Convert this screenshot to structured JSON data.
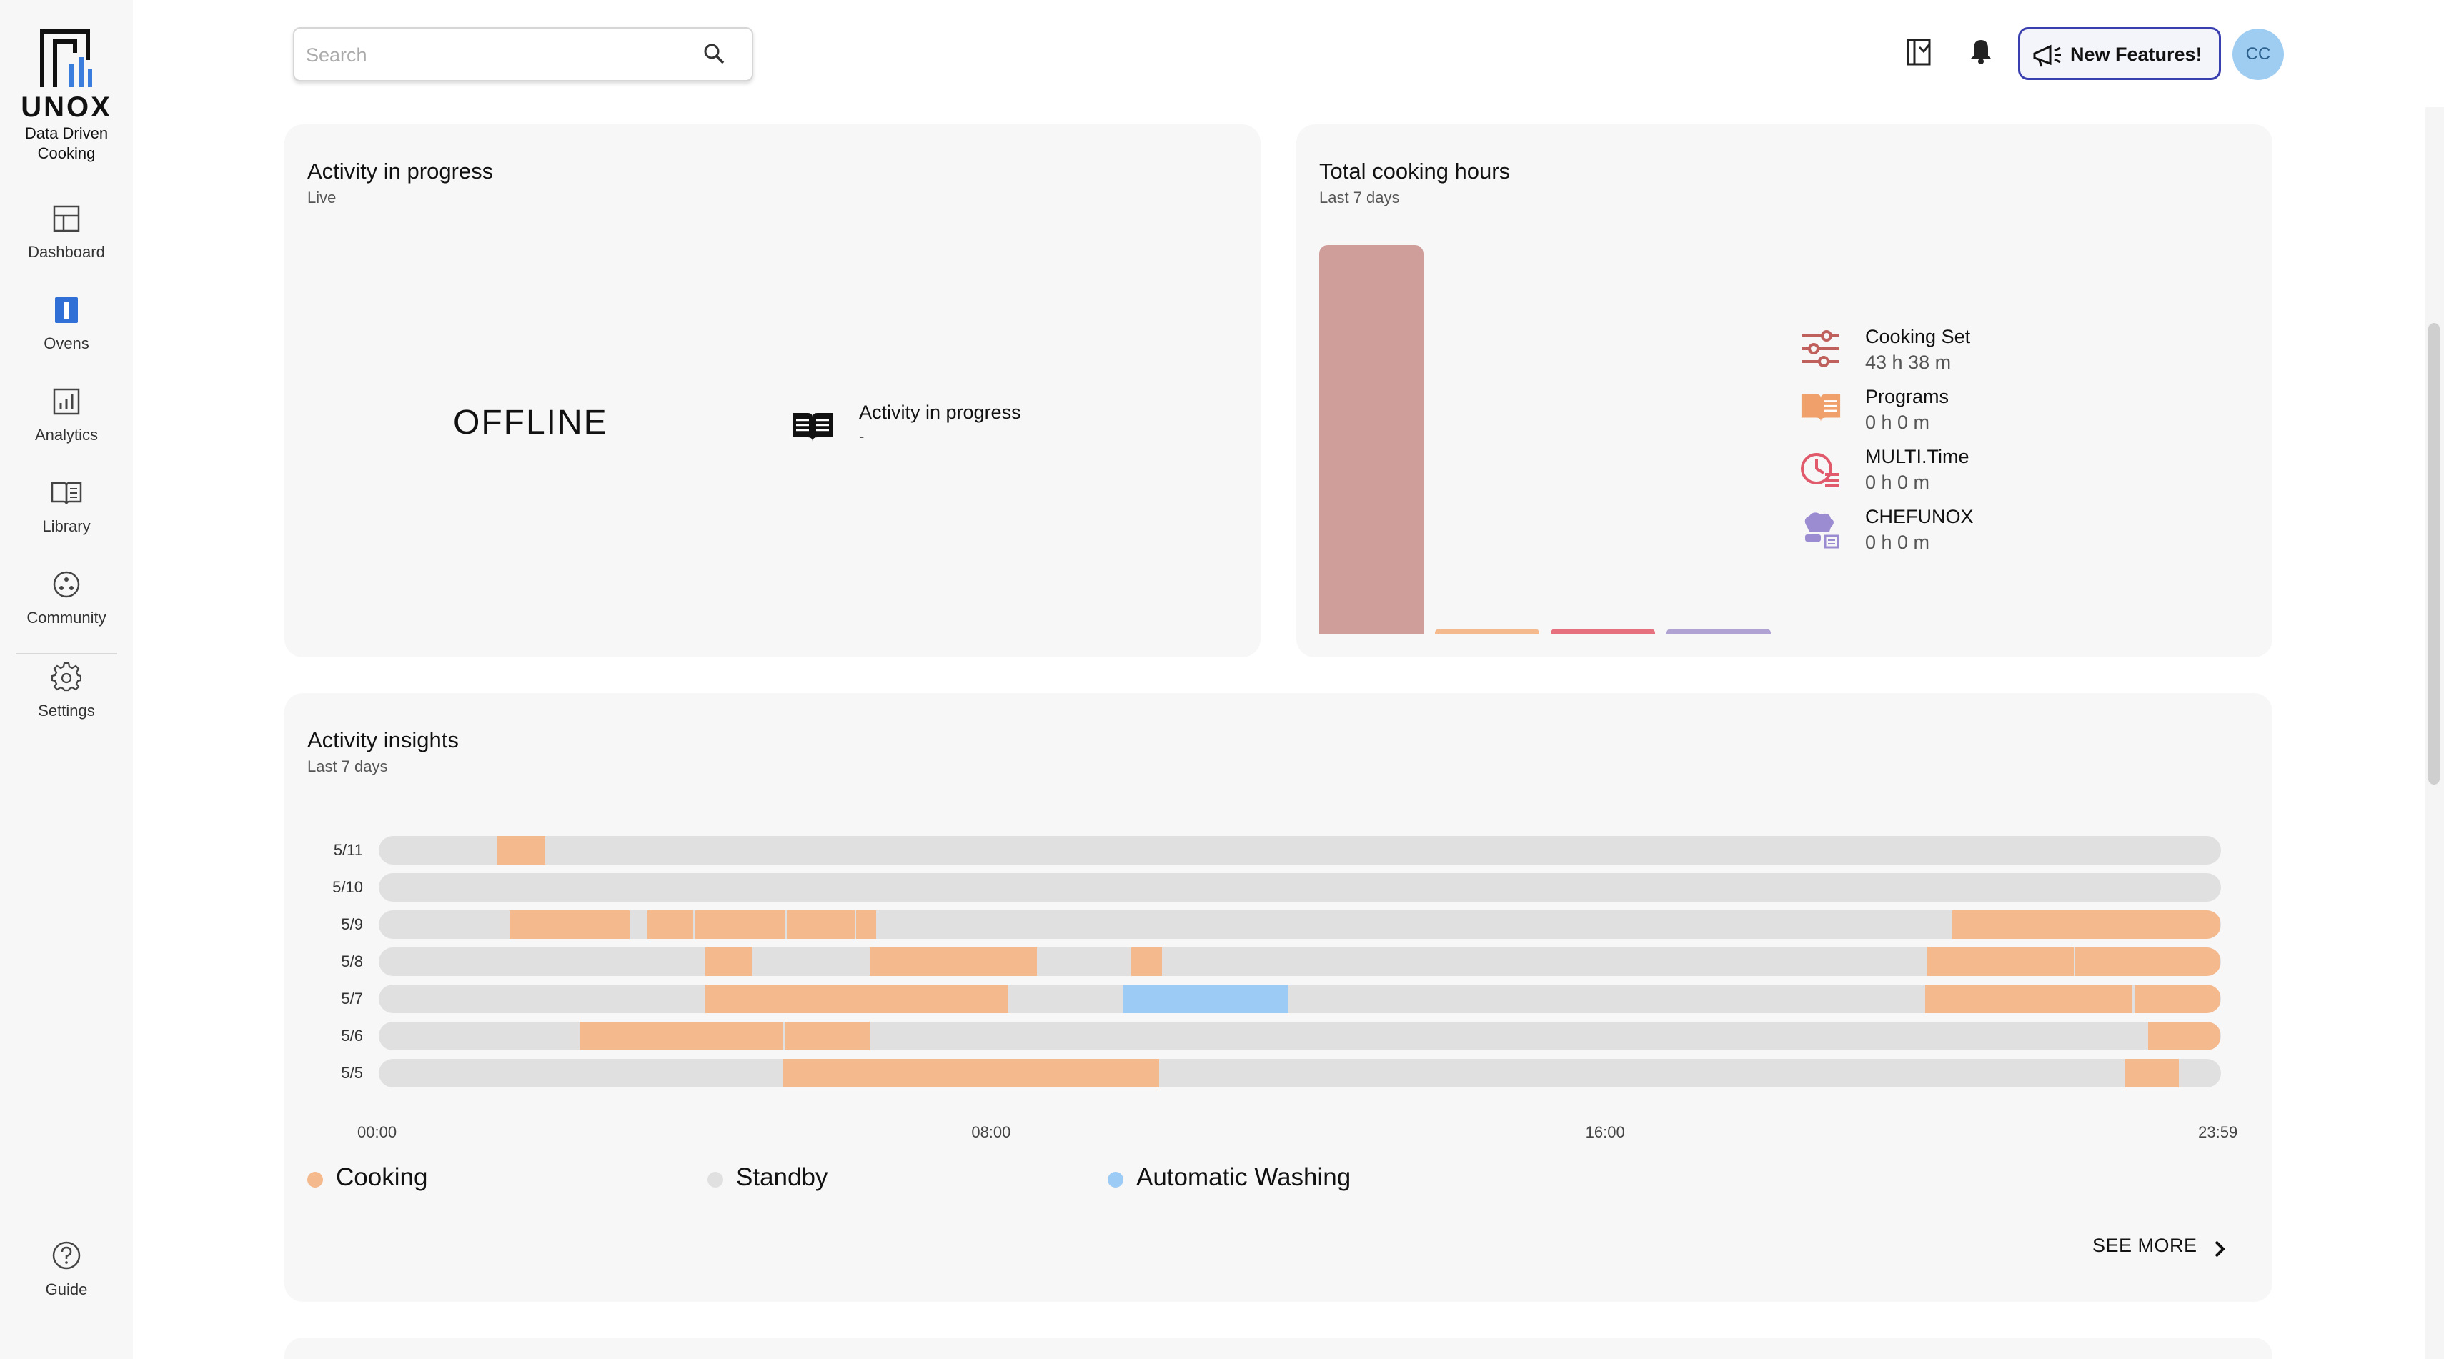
{
  "brand": {
    "name": "UNOX",
    "tagline_line1": "Data Driven",
    "tagline_line2": "Cooking"
  },
  "sidebar": {
    "items": [
      {
        "label": "Dashboard",
        "icon": "dashboard-icon"
      },
      {
        "label": "Ovens",
        "icon": "oven-icon"
      },
      {
        "label": "Analytics",
        "icon": "analytics-icon"
      },
      {
        "label": "Library",
        "icon": "library-icon"
      },
      {
        "label": "Community",
        "icon": "community-icon"
      },
      {
        "label": "Settings",
        "icon": "gear-icon"
      }
    ],
    "guide": {
      "label": "Guide",
      "icon": "help-icon"
    }
  },
  "header": {
    "search_placeholder": "Search",
    "new_features_label": "New Features!",
    "avatar_initials": "CC"
  },
  "activity_card": {
    "title": "Activity in progress",
    "subtitle": "Live",
    "status": "OFFLINE",
    "label": "Activity in progress",
    "value": "-"
  },
  "cooking_hours": {
    "title": "Total cooking hours",
    "subtitle": "Last 7 days",
    "colors": {
      "cooking_set": "#cf9e9b",
      "programs": "#f5b98e",
      "multi_time": "#e7707f",
      "chefunox": "#b0a3d4"
    },
    "legend": [
      {
        "name": "Cooking Set",
        "value": "43 h 38 m",
        "icon": "sliders-icon"
      },
      {
        "name": "Programs",
        "value": "0 h 0 m",
        "icon": "open-book-icon"
      },
      {
        "name": "MULTI.Time",
        "value": "0 h 0 m",
        "icon": "multitime-clock-icon"
      },
      {
        "name": "CHEFUNOX",
        "value": "0 h 0 m",
        "icon": "chef-hat-icon"
      }
    ]
  },
  "chart_data": {
    "type": "bar",
    "categories": [
      "Cooking Set",
      "Programs",
      "MULTI.Time",
      "CHEFUNOX"
    ],
    "values": [
      43.63,
      0,
      0,
      0
    ],
    "title": "Total cooking hours",
    "subtitle": "Last 7 days",
    "ylim": [
      0,
      43.63
    ],
    "grid": false,
    "legend_placement": "right"
  },
  "insights": {
    "title": "Activity insights",
    "subtitle": "Last 7 days",
    "axis_labels": [
      "00:00",
      "08:00",
      "16:00",
      "23:59"
    ],
    "axis_hours": [
      0,
      8,
      16,
      23.983
    ],
    "colors": {
      "cooking": "#f5b98e",
      "standby": "#e0e0e0",
      "washing": "#9ccbf5"
    },
    "legend": [
      {
        "label": "Cooking",
        "color": "#f5b98e"
      },
      {
        "label": "Standby",
        "color": "#e0e0e0"
      },
      {
        "label": "Automatic Washing",
        "color": "#9ccbf5"
      }
    ],
    "rows": [
      {
        "date": "5/11",
        "segments": [
          {
            "type": "cooking",
            "start": 1.55,
            "end": 2.17
          }
        ]
      },
      {
        "date": "5/10",
        "segments": []
      },
      {
        "date": "5/9",
        "segments": [
          {
            "type": "cooking",
            "start": 1.7,
            "end": 3.27
          },
          {
            "type": "cooking",
            "start": 3.5,
            "end": 4.1
          },
          {
            "type": "cooking",
            "start": 4.12,
            "end": 5.3
          },
          {
            "type": "cooking",
            "start": 5.32,
            "end": 6.2
          },
          {
            "type": "cooking",
            "start": 6.22,
            "end": 6.48
          },
          {
            "type": "cooking",
            "start": 20.5,
            "end": 23.98
          }
        ]
      },
      {
        "date": "5/8",
        "segments": [
          {
            "type": "cooking",
            "start": 4.25,
            "end": 4.87
          },
          {
            "type": "cooking",
            "start": 6.4,
            "end": 8.57
          },
          {
            "type": "cooking",
            "start": 9.8,
            "end": 10.2
          },
          {
            "type": "cooking",
            "start": 20.17,
            "end": 22.08
          },
          {
            "type": "cooking",
            "start": 22.1,
            "end": 23.98
          }
        ]
      },
      {
        "date": "5/7",
        "segments": [
          {
            "type": "cooking",
            "start": 4.25,
            "end": 8.2
          },
          {
            "type": "washing",
            "start": 9.7,
            "end": 11.85
          },
          {
            "type": "cooking",
            "start": 20.15,
            "end": 22.85
          },
          {
            "type": "cooking",
            "start": 22.87,
            "end": 23.98
          }
        ]
      },
      {
        "date": "5/6",
        "segments": [
          {
            "type": "cooking",
            "start": 2.62,
            "end": 5.27
          },
          {
            "type": "cooking",
            "start": 5.29,
            "end": 6.4
          },
          {
            "type": "cooking",
            "start": 23.05,
            "end": 23.98
          }
        ]
      },
      {
        "date": "5/5",
        "segments": [
          {
            "type": "cooking",
            "start": 5.27,
            "end": 10.17
          },
          {
            "type": "cooking",
            "start": 22.75,
            "end": 23.45
          }
        ]
      }
    ],
    "see_more_label": "SEE MORE"
  }
}
